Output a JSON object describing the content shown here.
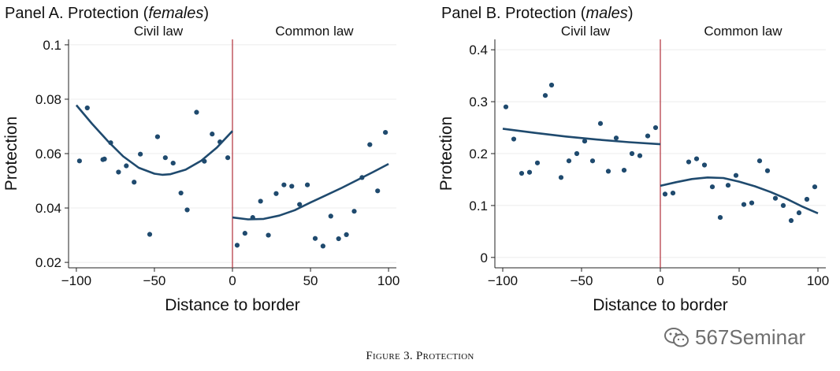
{
  "chart_data": [
    {
      "type": "scatter",
      "panel_title": "Panel A. Protection ",
      "panel_title_em": "females",
      "title_close": ")",
      "title_open": "(",
      "xlabel": "Distance to border",
      "ylabel": "Protection",
      "xlim": [
        -105,
        105
      ],
      "ylim": [
        0.018,
        0.102
      ],
      "xticks": [
        -100,
        -50,
        0,
        50,
        100
      ],
      "xtick_labels": [
        "−100",
        "−50",
        "0",
        "50",
        "100"
      ],
      "yticks": [
        0.02,
        0.04,
        0.06,
        0.08,
        0.1
      ],
      "ytick_labels": [
        "0.02",
        "0.04",
        "0.06",
        "0.08",
        "0.1"
      ],
      "region_labels": [
        "Civil law",
        "Common law"
      ],
      "border_x": 0,
      "points": [
        [
          -98,
          0.0573
        ],
        [
          -93,
          0.0768
        ],
        [
          -83,
          0.0578
        ],
        [
          -82,
          0.058
        ],
        [
          -78,
          0.064
        ],
        [
          -73,
          0.0532
        ],
        [
          -68,
          0.0555
        ],
        [
          -63,
          0.0495
        ],
        [
          -59,
          0.0598
        ],
        [
          -53,
          0.0303
        ],
        [
          -48,
          0.0662
        ],
        [
          -43,
          0.0585
        ],
        [
          -38,
          0.0565
        ],
        [
          -33,
          0.0455
        ],
        [
          -29,
          0.0393
        ],
        [
          -23,
          0.0752
        ],
        [
          -18,
          0.0572
        ],
        [
          -13,
          0.0672
        ],
        [
          -8,
          0.0643
        ],
        [
          -3,
          0.0585
        ],
        [
          3,
          0.0263
        ],
        [
          8,
          0.0307
        ],
        [
          13,
          0.0365
        ],
        [
          18,
          0.0425
        ],
        [
          23,
          0.03
        ],
        [
          28,
          0.0453
        ],
        [
          33,
          0.0485
        ],
        [
          38,
          0.048
        ],
        [
          43,
          0.0413
        ],
        [
          48,
          0.0485
        ],
        [
          53,
          0.0288
        ],
        [
          58,
          0.026
        ],
        [
          63,
          0.037
        ],
        [
          68,
          0.0287
        ],
        [
          73,
          0.0302
        ],
        [
          78,
          0.0388
        ],
        [
          83,
          0.0512
        ],
        [
          88,
          0.0633
        ],
        [
          93,
          0.0463
        ],
        [
          98,
          0.0678
        ]
      ],
      "fit_left": [
        [
          -100,
          0.0778
        ],
        [
          -90,
          0.071
        ],
        [
          -80,
          0.0647
        ],
        [
          -70,
          0.059
        ],
        [
          -60,
          0.0548
        ],
        [
          -50,
          0.0526
        ],
        [
          -45,
          0.0522
        ],
        [
          -40,
          0.0524
        ],
        [
          -30,
          0.0541
        ],
        [
          -20,
          0.0574
        ],
        [
          -10,
          0.0622
        ],
        [
          0,
          0.0683
        ]
      ],
      "fit_right": [
        [
          0,
          0.0365
        ],
        [
          10,
          0.0358
        ],
        [
          20,
          0.036
        ],
        [
          30,
          0.0372
        ],
        [
          40,
          0.0392
        ],
        [
          50,
          0.042
        ],
        [
          60,
          0.0447
        ],
        [
          70,
          0.0474
        ],
        [
          80,
          0.0503
        ],
        [
          90,
          0.0532
        ],
        [
          100,
          0.0562
        ]
      ]
    },
    {
      "type": "scatter",
      "panel_title": "Panel B. Protection ",
      "panel_title_em": "males",
      "title_close": ")",
      "title_open": "(",
      "xlabel": "Distance to border",
      "ylabel": "Protection",
      "xlim": [
        -105,
        105
      ],
      "ylim": [
        -0.02,
        0.42
      ],
      "xticks": [
        -100,
        -50,
        0,
        50,
        100
      ],
      "xtick_labels": [
        "−100",
        "−50",
        "0",
        "50",
        "100"
      ],
      "yticks": [
        0,
        0.1,
        0.2,
        0.3,
        0.4
      ],
      "ytick_labels": [
        "0",
        "0.1",
        "0.2",
        "0.3",
        "0.4"
      ],
      "region_labels": [
        "Civil law",
        "Common law"
      ],
      "border_x": 0,
      "points": [
        [
          -98,
          0.29
        ],
        [
          -93,
          0.228
        ],
        [
          -88,
          0.162
        ],
        [
          -83,
          0.164
        ],
        [
          -78,
          0.182
        ],
        [
          -73,
          0.312
        ],
        [
          -69,
          0.332
        ],
        [
          -63,
          0.154
        ],
        [
          -58,
          0.186
        ],
        [
          -53,
          0.2
        ],
        [
          -48,
          0.224
        ],
        [
          -43,
          0.186
        ],
        [
          -38,
          0.258
        ],
        [
          -33,
          0.166
        ],
        [
          -28,
          0.23
        ],
        [
          -23,
          0.168
        ],
        [
          -18,
          0.2
        ],
        [
          -13,
          0.196
        ],
        [
          -8,
          0.234
        ],
        [
          -3,
          0.25
        ],
        [
          3,
          0.122
        ],
        [
          8,
          0.124
        ],
        [
          18,
          0.184
        ],
        [
          23,
          0.19
        ],
        [
          28,
          0.178
        ],
        [
          33,
          0.136
        ],
        [
          38,
          0.077
        ],
        [
          43,
          0.139
        ],
        [
          48,
          0.158
        ],
        [
          53,
          0.102
        ],
        [
          58,
          0.105
        ],
        [
          63,
          0.186
        ],
        [
          68,
          0.167
        ],
        [
          73,
          0.114
        ],
        [
          78,
          0.1
        ],
        [
          83,
          0.071
        ],
        [
          88,
          0.086
        ],
        [
          93,
          0.112
        ],
        [
          98,
          0.136
        ]
      ],
      "fit_left": [
        [
          -100,
          0.248
        ],
        [
          -80,
          0.24
        ],
        [
          -60,
          0.233
        ],
        [
          -40,
          0.227
        ],
        [
          -20,
          0.222
        ],
        [
          0,
          0.218
        ]
      ],
      "fit_right": [
        [
          0,
          0.138
        ],
        [
          10,
          0.145
        ],
        [
          20,
          0.151
        ],
        [
          30,
          0.154
        ],
        [
          40,
          0.153
        ],
        [
          50,
          0.146
        ],
        [
          60,
          0.137
        ],
        [
          70,
          0.126
        ],
        [
          80,
          0.113
        ],
        [
          90,
          0.098
        ],
        [
          100,
          0.085
        ]
      ]
    }
  ],
  "figure": {
    "caption": "Figure 3. Protection",
    "watermark": "567Seminar"
  },
  "colors": {
    "points": "#1f4a6e",
    "fit": "#1f4a6e",
    "border_line": "#b0303a",
    "grid": "#ececec",
    "watermark": "#6f6f6f"
  }
}
